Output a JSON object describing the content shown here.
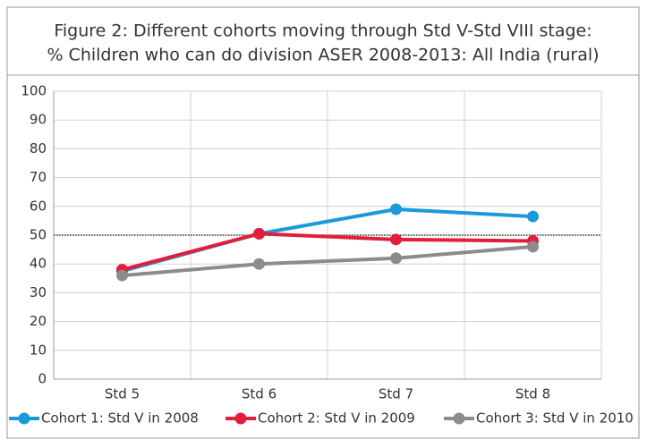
{
  "chart_data": {
    "type": "line",
    "title": [
      "Figure 2: Different cohorts moving through Std V-Std VIII stage:",
      "% Children who can do division ASER 2008-2013: All India (rural)"
    ],
    "categories": [
      "Std 5",
      "Std 6",
      "Std 7",
      "Std 8"
    ],
    "series": [
      {
        "name": "Cohort 1: Std V in 2008",
        "color": "#1a9ad6",
        "values": [
          37.5,
          50.5,
          59,
          56.5
        ]
      },
      {
        "name": "Cohort 2: Std V in 2009",
        "color": "#e31e3c",
        "values": [
          38,
          50.5,
          48.5,
          48
        ]
      },
      {
        "name": "Cohort 3: Std V in 2010",
        "color": "#8c8c8c",
        "values": [
          36,
          40,
          42,
          46
        ]
      }
    ],
    "ylim": [
      0,
      100
    ],
    "yticks": [
      0,
      10,
      20,
      30,
      40,
      50,
      60,
      70,
      80,
      90,
      100
    ],
    "reference_line": 50,
    "grid": true,
    "legend": "bottom"
  }
}
